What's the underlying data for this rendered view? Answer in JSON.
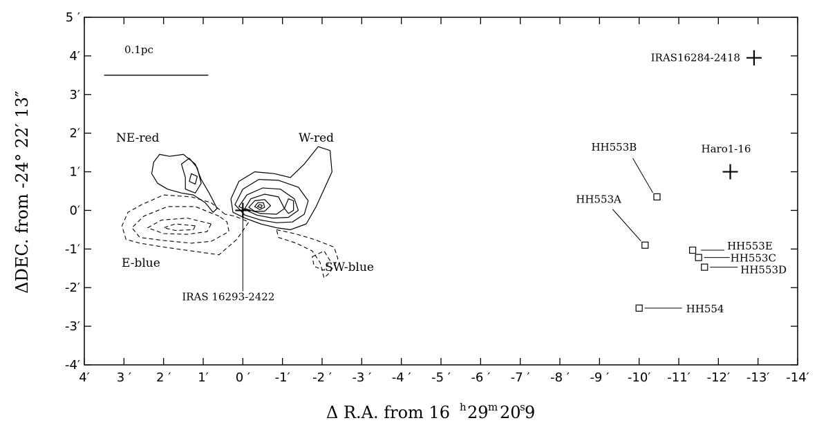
{
  "chart_data": {
    "type": "scatter",
    "xlabel": "ΔR.A. from 16h29m20.s9",
    "xlabel_parts": {
      "prefix": "Δ R.A.  from 16",
      "h": "h",
      "m": "m",
      "mid1": "29",
      "mid2": "20",
      "s": "s",
      "suffix": "9"
    },
    "ylabel": "ΔDEC. from -24° 22′ 13″",
    "xlim": [
      4,
      -14
    ],
    "ylim": [
      -4,
      5
    ],
    "xticks": [
      4,
      3,
      2,
      1,
      0,
      -1,
      -2,
      -3,
      -4,
      -5,
      -6,
      -7,
      -8,
      -9,
      -10,
      -11,
      -12,
      -13,
      -14
    ],
    "xtick_labels": [
      "4′",
      "3 ′",
      "2 ′",
      "1′",
      "0 ′",
      "-1′",
      "-2 ′",
      "-3 ′",
      "-4 ′",
      "-5 ′",
      "-6 ′",
      "-7 ′",
      "-8 ′",
      "-9 ′",
      "-10′",
      "-11′",
      "-12′",
      "-13′",
      "-14′"
    ],
    "yticks": [
      5,
      4,
      3,
      2,
      1,
      0,
      -1,
      -2,
      -3,
      -4
    ],
    "ytick_labels": [
      "5 ′",
      "4′",
      "3′",
      "2′",
      "1′",
      "0′",
      "-1′",
      "-2′",
      "-3′",
      "-4′"
    ],
    "scale_bar": {
      "label": "0.1pc",
      "x_from": 3.5,
      "x_to": 1.5,
      "y": 3.5
    },
    "sources": [
      {
        "name": "IRAS16284-2418",
        "x": -12.9,
        "y": 3.95,
        "marker": "plus"
      },
      {
        "name": "Haro1-16",
        "x": -12.3,
        "y": 1.0,
        "marker": "plus"
      },
      {
        "name": "IRAS 16293-2422",
        "x": 0.0,
        "y": 0.0,
        "marker": "plus"
      }
    ],
    "hh_objects": [
      {
        "name": "HH553A",
        "x": -10.15,
        "y": -0.9
      },
      {
        "name": "HH553B",
        "x": -10.45,
        "y": 0.35
      },
      {
        "name": "HH553C",
        "x": -11.5,
        "y": -1.22
      },
      {
        "name": "HH553D",
        "x": -11.65,
        "y": -1.47
      },
      {
        "name": "HH553E",
        "x": -11.35,
        "y": -1.03
      },
      {
        "name": "HH554",
        "x": -10.0,
        "y": -2.53
      }
    ],
    "lobe_labels": [
      {
        "name": "NE-red",
        "type": "redshifted"
      },
      {
        "name": "W-red",
        "type": "redshifted"
      },
      {
        "name": "E-blue",
        "type": "blueshifted"
      },
      {
        "name": "SW-blue",
        "type": "blueshifted"
      }
    ],
    "contours": {
      "solid": [
        [
          [
            2.3,
            0.95
          ],
          [
            2.25,
            1.25
          ],
          [
            2.1,
            1.45
          ],
          [
            1.85,
            1.4
          ],
          [
            1.5,
            1.45
          ],
          [
            1.2,
            1.2
          ],
          [
            1.05,
            0.8
          ],
          [
            0.85,
            0.45
          ],
          [
            0.65,
            0.05
          ],
          [
            0.75,
            -0.05
          ],
          [
            0.95,
            0.2
          ],
          [
            1.25,
            0.4
          ],
          [
            1.55,
            0.45
          ],
          [
            1.9,
            0.55
          ],
          [
            2.15,
            0.7
          ],
          [
            2.3,
            0.95
          ]
        ],
        [
          [
            1.45,
            0.85
          ],
          [
            1.55,
            1.2
          ],
          [
            1.35,
            1.35
          ],
          [
            1.15,
            1.1
          ],
          [
            1.05,
            0.7
          ],
          [
            1.2,
            0.45
          ],
          [
            1.45,
            0.55
          ],
          [
            1.45,
            0.85
          ]
        ],
        [
          [
            1.3,
            0.95
          ],
          [
            1.35,
            0.75
          ],
          [
            1.2,
            0.68
          ],
          [
            1.15,
            0.88
          ],
          [
            1.3,
            0.95
          ]
        ],
        [
          [
            0.3,
            0.3
          ],
          [
            0.1,
            0.75
          ],
          [
            -0.3,
            1.0
          ],
          [
            -0.8,
            0.95
          ],
          [
            -1.2,
            0.85
          ],
          [
            -1.55,
            1.2
          ],
          [
            -1.9,
            1.65
          ],
          [
            -2.2,
            1.55
          ],
          [
            -2.25,
            1.0
          ],
          [
            -2.05,
            0.55
          ],
          [
            -1.85,
            0.1
          ],
          [
            -1.6,
            -0.35
          ],
          [
            -1.2,
            -0.5
          ],
          [
            -0.85,
            -0.45
          ],
          [
            -0.45,
            -0.35
          ],
          [
            -0.05,
            -0.2
          ],
          [
            0.25,
            -0.05
          ],
          [
            0.3,
            0.3
          ]
        ],
        [
          [
            0.2,
            0.15
          ],
          [
            0.0,
            0.55
          ],
          [
            -0.4,
            0.8
          ],
          [
            -0.9,
            0.78
          ],
          [
            -1.4,
            0.6
          ],
          [
            -1.65,
            0.25
          ],
          [
            -1.55,
            -0.1
          ],
          [
            -1.25,
            -0.3
          ],
          [
            -0.85,
            -0.32
          ],
          [
            -0.45,
            -0.25
          ],
          [
            -0.05,
            -0.12
          ],
          [
            0.2,
            0.15
          ]
        ],
        [
          [
            0.1,
            0.1
          ],
          [
            -0.1,
            0.4
          ],
          [
            -0.5,
            0.58
          ],
          [
            -0.95,
            0.55
          ],
          [
            -1.3,
            0.3
          ],
          [
            -1.4,
            0.0
          ],
          [
            -1.15,
            -0.18
          ],
          [
            -0.75,
            -0.2
          ],
          [
            -0.35,
            -0.12
          ],
          [
            0.1,
            0.1
          ]
        ],
        [
          [
            -0.05,
            0.05
          ],
          [
            -0.2,
            0.3
          ],
          [
            -0.55,
            0.42
          ],
          [
            -0.9,
            0.35
          ],
          [
            -1.05,
            0.05
          ],
          [
            -0.85,
            -0.1
          ],
          [
            -0.45,
            -0.08
          ],
          [
            -0.05,
            0.05
          ]
        ],
        [
          [
            -0.15,
            0.08
          ],
          [
            -0.3,
            0.25
          ],
          [
            -0.55,
            0.28
          ],
          [
            -0.7,
            0.12
          ],
          [
            -0.55,
            -0.02
          ],
          [
            -0.3,
            -0.02
          ],
          [
            -0.15,
            0.08
          ]
        ],
        [
          [
            -0.3,
            0.1
          ],
          [
            -0.38,
            0.2
          ],
          [
            -0.52,
            0.2
          ],
          [
            -0.55,
            0.08
          ],
          [
            -0.42,
            0.02
          ],
          [
            -0.3,
            0.1
          ]
        ],
        [
          [
            -0.37,
            0.1
          ],
          [
            -0.42,
            0.15
          ],
          [
            -0.49,
            0.13
          ],
          [
            -0.46,
            0.07
          ],
          [
            -0.37,
            0.1
          ]
        ],
        [
          [
            -1.05,
            0.05
          ],
          [
            -1.15,
            0.3
          ],
          [
            -1.28,
            0.25
          ],
          [
            -1.28,
            0.0
          ],
          [
            -1.15,
            -0.08
          ],
          [
            -1.05,
            0.05
          ]
        ]
      ],
      "dashed": [
        [
          [
            0.45,
            -0.1
          ],
          [
            0.8,
            0.2
          ],
          [
            1.3,
            0.35
          ],
          [
            2.0,
            0.4
          ],
          [
            2.55,
            0.15
          ],
          [
            2.9,
            -0.05
          ],
          [
            3.05,
            -0.4
          ],
          [
            2.95,
            -0.75
          ],
          [
            2.6,
            -0.85
          ],
          [
            2.0,
            -0.95
          ],
          [
            1.3,
            -1.05
          ],
          [
            0.6,
            -1.15
          ],
          [
            0.15,
            -0.75
          ],
          [
            -0.15,
            -0.3
          ],
          [
            0.2,
            -0.15
          ],
          [
            0.45,
            -0.1
          ]
        ],
        [
          [
            0.6,
            -0.15
          ],
          [
            1.2,
            0.1
          ],
          [
            1.9,
            0.1
          ],
          [
            2.5,
            -0.15
          ],
          [
            2.8,
            -0.45
          ],
          [
            2.6,
            -0.7
          ],
          [
            2.0,
            -0.78
          ],
          [
            1.3,
            -0.85
          ],
          [
            0.8,
            -0.8
          ],
          [
            0.35,
            -0.55
          ],
          [
            0.4,
            -0.3
          ],
          [
            0.6,
            -0.15
          ]
        ],
        [
          [
            0.8,
            -0.35
          ],
          [
            1.4,
            -0.2
          ],
          [
            2.05,
            -0.25
          ],
          [
            2.4,
            -0.45
          ],
          [
            2.0,
            -0.6
          ],
          [
            1.4,
            -0.62
          ],
          [
            0.9,
            -0.55
          ],
          [
            0.8,
            -0.35
          ]
        ],
        [
          [
            1.2,
            -0.4
          ],
          [
            1.7,
            -0.35
          ],
          [
            2.0,
            -0.45
          ],
          [
            1.7,
            -0.52
          ],
          [
            1.25,
            -0.5
          ],
          [
            1.2,
            -0.4
          ]
        ],
        [
          [
            -0.85,
            -0.5
          ],
          [
            -1.3,
            -0.6
          ],
          [
            -1.8,
            -0.75
          ],
          [
            -2.3,
            -0.95
          ],
          [
            -2.4,
            -1.25
          ],
          [
            -2.2,
            -1.6
          ],
          [
            -2.05,
            -1.75
          ],
          [
            -1.95,
            -1.35
          ],
          [
            -1.75,
            -1.05
          ],
          [
            -1.35,
            -0.85
          ],
          [
            -0.9,
            -0.7
          ],
          [
            -0.85,
            -0.5
          ]
        ],
        [
          [
            -1.75,
            -1.2
          ],
          [
            -2.05,
            -1.05
          ],
          [
            -2.2,
            -1.3
          ],
          [
            -2.05,
            -1.55
          ],
          [
            -1.8,
            -1.45
          ],
          [
            -1.75,
            -1.2
          ]
        ]
      ]
    }
  }
}
